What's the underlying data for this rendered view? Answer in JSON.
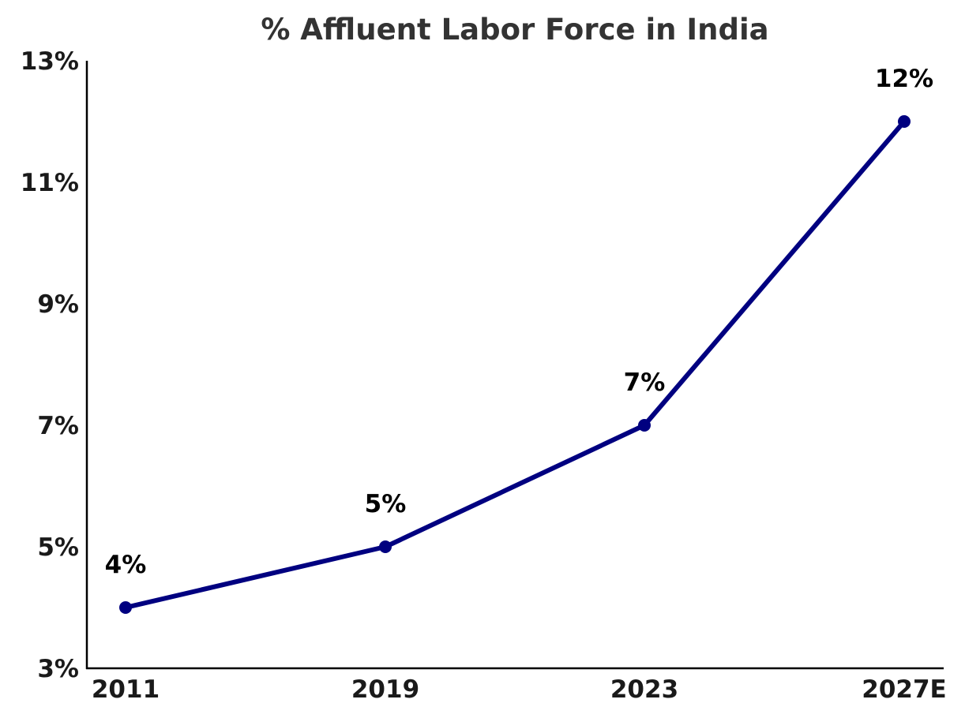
{
  "chart_data": {
    "type": "line",
    "title": "% Affluent Labor Force in India",
    "xlabel": "",
    "ylabel": "",
    "categories": [
      "2011",
      "2019",
      "2023",
      "2027E"
    ],
    "series": [
      {
        "values": [
          4,
          5,
          7,
          12
        ],
        "color": "#000080"
      }
    ],
    "data_labels": [
      "4%",
      "5%",
      "7%",
      "12%"
    ],
    "ylim": [
      3,
      13
    ],
    "yticks": [
      3,
      5,
      7,
      9,
      11,
      13
    ],
    "ytick_labels": [
      "3%",
      "5%",
      "7%",
      "9%",
      "11%",
      "13%"
    ],
    "grid": false,
    "legend": "none"
  }
}
